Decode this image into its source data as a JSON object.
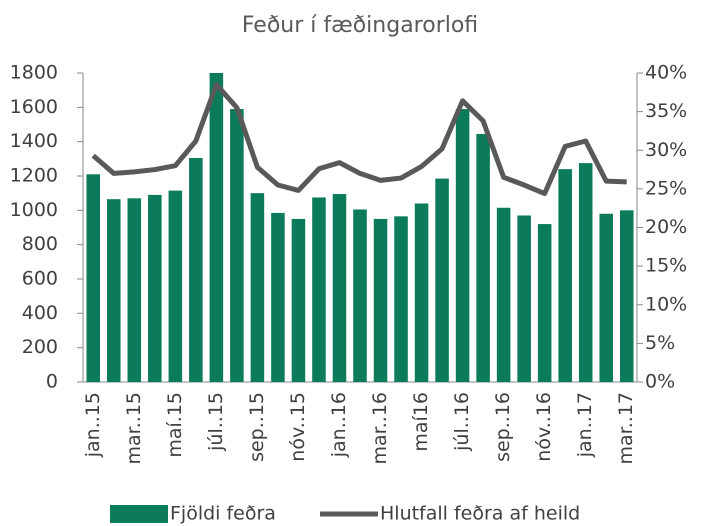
{
  "chart_data": {
    "type": "bar_line",
    "title": "Feður í fæðingarorlofi",
    "categories": [
      "jan..15",
      null,
      "mar..15",
      null,
      "maí.15",
      null,
      "júl..15",
      null,
      "sep..15",
      null,
      "nóv..15",
      null,
      "jan..16",
      null,
      "mar..16",
      null,
      "maí16",
      null,
      "júl..16",
      null,
      "sep..16",
      null,
      "nóv..16",
      null,
      "jan..17",
      null,
      "mar..17"
    ],
    "series": [
      {
        "name": "Fjöldi feðra",
        "type": "bar",
        "color": "#0b7b5c",
        "values": [
          1210,
          1065,
          1070,
          1090,
          1115,
          1305,
          1800,
          1590,
          1100,
          985,
          950,
          1075,
          1095,
          1005,
          950,
          965,
          1040,
          1185,
          1590,
          1445,
          1015,
          970,
          920,
          1240,
          1275,
          980,
          1000
        ]
      },
      {
        "name": "Hlutfall feðra af heild",
        "type": "line",
        "axis": "y2",
        "color": "#595959",
        "values": [
          29.3,
          27.0,
          27.2,
          27.5,
          28.0,
          31.2,
          38.5,
          35.5,
          27.8,
          25.5,
          24.8,
          27.6,
          28.4,
          27.0,
          26.1,
          26.4,
          27.9,
          30.2,
          36.4,
          33.8,
          26.5,
          25.5,
          24.4,
          30.5,
          31.2,
          26.0,
          25.9
        ]
      }
    ],
    "ylim": [
      0,
      1800
    ],
    "yticks": [
      0,
      200,
      400,
      600,
      800,
      1000,
      1200,
      1400,
      1600,
      1800
    ],
    "y2lim": [
      0,
      40
    ],
    "y2ticks": [
      {
        "value": 0,
        "label": "0%"
      },
      {
        "value": 5,
        "label": "5%"
      },
      {
        "value": 10,
        "label": "10%"
      },
      {
        "value": 15,
        "label": "15%"
      },
      {
        "value": 20,
        "label": "20%"
      },
      {
        "value": 25,
        "label": "25%"
      },
      {
        "value": 30,
        "label": "30%"
      },
      {
        "value": 35,
        "label": "35%"
      },
      {
        "value": 40,
        "label": "40%"
      }
    ],
    "legend": "bottom"
  }
}
